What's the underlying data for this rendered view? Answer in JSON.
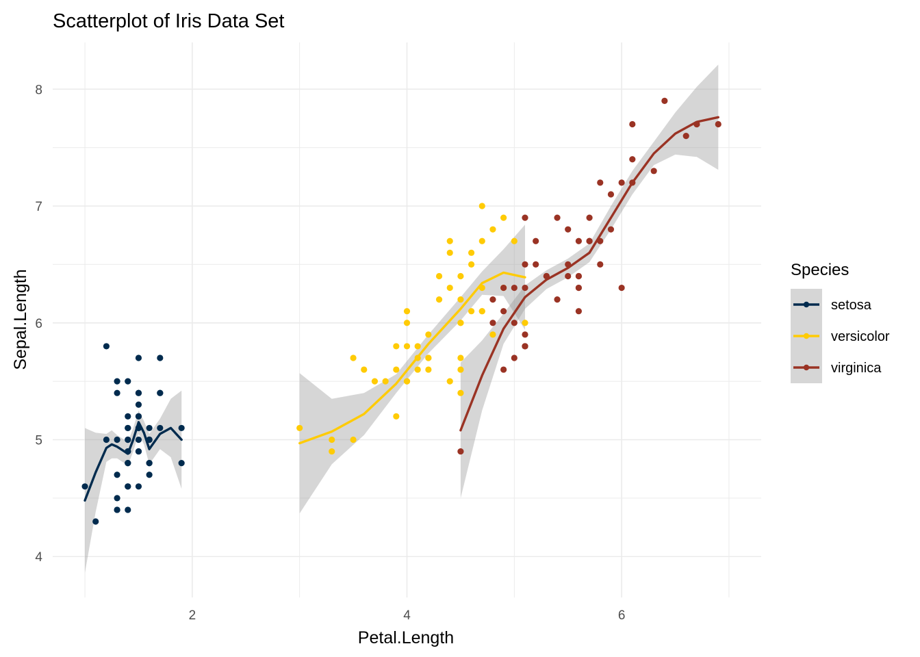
{
  "chart_data": {
    "type": "scatter",
    "title": "Scatterplot of Iris Data Set",
    "xlabel": "Petal.Length",
    "ylabel": "Sepal.Length",
    "xlim": [
      0.7,
      7.3
    ],
    "ylim": [
      3.65,
      8.4
    ],
    "x_ticks": [
      2,
      4,
      6
    ],
    "y_ticks": [
      4,
      5,
      6,
      7,
      8
    ],
    "grid": true,
    "legend_position": "right",
    "legend": {
      "title": "Species",
      "entries": [
        "setosa",
        "versicolor",
        "virginica"
      ]
    },
    "colors": {
      "setosa": "#002B4E",
      "versicolor": "#FFCB05",
      "virginica": "#9A3324",
      "band": "#999999",
      "grid": "#EBEBEB"
    },
    "series": [
      {
        "name": "setosa",
        "points": [
          [
            1.4,
            5.1
          ],
          [
            1.4,
            4.9
          ],
          [
            1.3,
            4.7
          ],
          [
            1.5,
            4.6
          ],
          [
            1.4,
            5.0
          ],
          [
            1.7,
            5.4
          ],
          [
            1.4,
            4.6
          ],
          [
            1.5,
            5.0
          ],
          [
            1.4,
            4.4
          ],
          [
            1.5,
            4.9
          ],
          [
            1.5,
            5.4
          ],
          [
            1.6,
            4.8
          ],
          [
            1.4,
            4.8
          ],
          [
            1.1,
            4.3
          ],
          [
            1.2,
            5.8
          ],
          [
            1.5,
            5.7
          ],
          [
            1.3,
            5.4
          ],
          [
            1.4,
            5.1
          ],
          [
            1.7,
            5.7
          ],
          [
            1.5,
            5.1
          ],
          [
            1.7,
            5.4
          ],
          [
            1.5,
            5.1
          ],
          [
            1.0,
            4.6
          ],
          [
            1.7,
            5.1
          ],
          [
            1.9,
            4.8
          ],
          [
            1.6,
            5.0
          ],
          [
            1.6,
            5.0
          ],
          [
            1.5,
            5.2
          ],
          [
            1.4,
            5.2
          ],
          [
            1.6,
            4.7
          ],
          [
            1.6,
            4.8
          ],
          [
            1.5,
            5.4
          ],
          [
            1.5,
            5.2
          ],
          [
            1.4,
            5.5
          ],
          [
            1.5,
            4.9
          ],
          [
            1.2,
            5.0
          ],
          [
            1.3,
            5.5
          ],
          [
            1.4,
            4.9
          ],
          [
            1.3,
            4.4
          ],
          [
            1.5,
            5.1
          ],
          [
            1.3,
            5.0
          ],
          [
            1.3,
            4.5
          ],
          [
            1.3,
            4.4
          ],
          [
            1.6,
            5.0
          ],
          [
            1.9,
            5.1
          ],
          [
            1.4,
            4.8
          ],
          [
            1.6,
            5.1
          ],
          [
            1.4,
            4.6
          ],
          [
            1.5,
            5.3
          ],
          [
            1.4,
            5.0
          ]
        ],
        "smooth": [
          [
            1.0,
            4.48
          ],
          [
            1.1,
            4.72
          ],
          [
            1.2,
            4.93
          ],
          [
            1.25,
            4.96
          ],
          [
            1.3,
            4.94
          ],
          [
            1.4,
            4.88
          ],
          [
            1.45,
            5.0
          ],
          [
            1.5,
            5.15
          ],
          [
            1.55,
            5.06
          ],
          [
            1.6,
            4.92
          ],
          [
            1.7,
            5.05
          ],
          [
            1.8,
            5.1
          ],
          [
            1.9,
            5.0
          ]
        ],
        "band_half_width": [
          0.62,
          0.34,
          0.12,
          0.12,
          0.1,
          0.1,
          0.1,
          0.1,
          0.1,
          0.13,
          0.13,
          0.25,
          0.42
        ]
      },
      {
        "name": "versicolor",
        "points": [
          [
            4.7,
            7.0
          ],
          [
            4.5,
            6.4
          ],
          [
            4.9,
            6.9
          ],
          [
            4.0,
            5.5
          ],
          [
            4.6,
            6.5
          ],
          [
            4.5,
            5.7
          ],
          [
            4.7,
            6.3
          ],
          [
            3.3,
            4.9
          ],
          [
            4.6,
            6.6
          ],
          [
            3.9,
            5.2
          ],
          [
            3.5,
            5.0
          ],
          [
            4.2,
            5.9
          ],
          [
            4.0,
            6.0
          ],
          [
            4.7,
            6.1
          ],
          [
            3.6,
            5.6
          ],
          [
            4.4,
            6.7
          ],
          [
            4.5,
            5.6
          ],
          [
            4.1,
            5.8
          ],
          [
            4.5,
            6.2
          ],
          [
            3.9,
            5.6
          ],
          [
            4.8,
            5.9
          ],
          [
            4.0,
            6.1
          ],
          [
            4.9,
            6.3
          ],
          [
            4.7,
            6.1
          ],
          [
            4.3,
            6.4
          ],
          [
            4.4,
            6.6
          ],
          [
            4.8,
            6.8
          ],
          [
            5.0,
            6.7
          ],
          [
            4.5,
            6.0
          ],
          [
            3.5,
            5.7
          ],
          [
            3.8,
            5.5
          ],
          [
            3.7,
            5.5
          ],
          [
            3.9,
            5.8
          ],
          [
            5.1,
            6.0
          ],
          [
            4.5,
            5.4
          ],
          [
            4.5,
            6.0
          ],
          [
            4.7,
            6.7
          ],
          [
            4.4,
            6.3
          ],
          [
            4.1,
            5.6
          ],
          [
            4.0,
            5.5
          ],
          [
            4.4,
            5.5
          ],
          [
            4.6,
            6.1
          ],
          [
            4.0,
            5.8
          ],
          [
            3.3,
            5.0
          ],
          [
            4.2,
            5.6
          ],
          [
            4.2,
            5.7
          ],
          [
            4.2,
            5.7
          ],
          [
            4.3,
            6.2
          ],
          [
            3.0,
            5.1
          ],
          [
            4.1,
            5.7
          ]
        ],
        "smooth": [
          [
            3.0,
            4.97
          ],
          [
            3.3,
            5.07
          ],
          [
            3.6,
            5.22
          ],
          [
            3.9,
            5.48
          ],
          [
            4.2,
            5.82
          ],
          [
            4.5,
            6.12
          ],
          [
            4.7,
            6.34
          ],
          [
            4.9,
            6.43
          ],
          [
            5.1,
            6.39
          ]
        ],
        "band_half_width": [
          0.6,
          0.28,
          0.18,
          0.08,
          0.08,
          0.1,
          0.1,
          0.2,
          0.45
        ]
      },
      {
        "name": "virginica",
        "points": [
          [
            6.0,
            6.3
          ],
          [
            5.1,
            5.8
          ],
          [
            5.9,
            7.1
          ],
          [
            5.6,
            6.3
          ],
          [
            5.8,
            6.5
          ],
          [
            6.6,
            7.6
          ],
          [
            4.5,
            4.9
          ],
          [
            6.3,
            7.3
          ],
          [
            5.8,
            6.7
          ],
          [
            6.1,
            7.2
          ],
          [
            5.1,
            6.5
          ],
          [
            5.3,
            6.4
          ],
          [
            5.5,
            6.8
          ],
          [
            5.0,
            5.7
          ],
          [
            5.1,
            5.8
          ],
          [
            5.3,
            6.4
          ],
          [
            5.5,
            6.5
          ],
          [
            6.7,
            7.7
          ],
          [
            6.9,
            7.7
          ],
          [
            5.0,
            6.0
          ],
          [
            5.7,
            6.9
          ],
          [
            4.9,
            5.6
          ],
          [
            6.7,
            7.7
          ],
          [
            4.9,
            6.3
          ],
          [
            5.7,
            6.7
          ],
          [
            6.0,
            7.2
          ],
          [
            4.8,
            6.2
          ],
          [
            4.9,
            6.1
          ],
          [
            5.6,
            6.4
          ],
          [
            5.8,
            7.2
          ],
          [
            6.1,
            7.4
          ],
          [
            6.4,
            7.9
          ],
          [
            5.6,
            6.4
          ],
          [
            5.1,
            6.3
          ],
          [
            5.6,
            6.1
          ],
          [
            6.1,
            7.7
          ],
          [
            5.6,
            6.3
          ],
          [
            5.5,
            6.4
          ],
          [
            4.8,
            6.0
          ],
          [
            5.4,
            6.9
          ],
          [
            5.6,
            6.7
          ],
          [
            5.1,
            6.9
          ],
          [
            5.1,
            5.8
          ],
          [
            5.9,
            6.8
          ],
          [
            5.7,
            6.7
          ],
          [
            5.2,
            6.7
          ],
          [
            5.0,
            6.3
          ],
          [
            5.2,
            6.5
          ],
          [
            5.4,
            6.2
          ],
          [
            5.1,
            5.9
          ]
        ],
        "smooth": [
          [
            4.5,
            5.08
          ],
          [
            4.7,
            5.55
          ],
          [
            4.9,
            5.95
          ],
          [
            5.1,
            6.22
          ],
          [
            5.3,
            6.37
          ],
          [
            5.5,
            6.47
          ],
          [
            5.7,
            6.6
          ],
          [
            5.9,
            6.9
          ],
          [
            6.1,
            7.2
          ],
          [
            6.3,
            7.45
          ],
          [
            6.5,
            7.62
          ],
          [
            6.7,
            7.72
          ],
          [
            6.9,
            7.76
          ]
        ],
        "band_half_width": [
          0.58,
          0.3,
          0.13,
          0.1,
          0.08,
          0.08,
          0.08,
          0.1,
          0.1,
          0.1,
          0.18,
          0.3,
          0.45
        ]
      }
    ]
  }
}
